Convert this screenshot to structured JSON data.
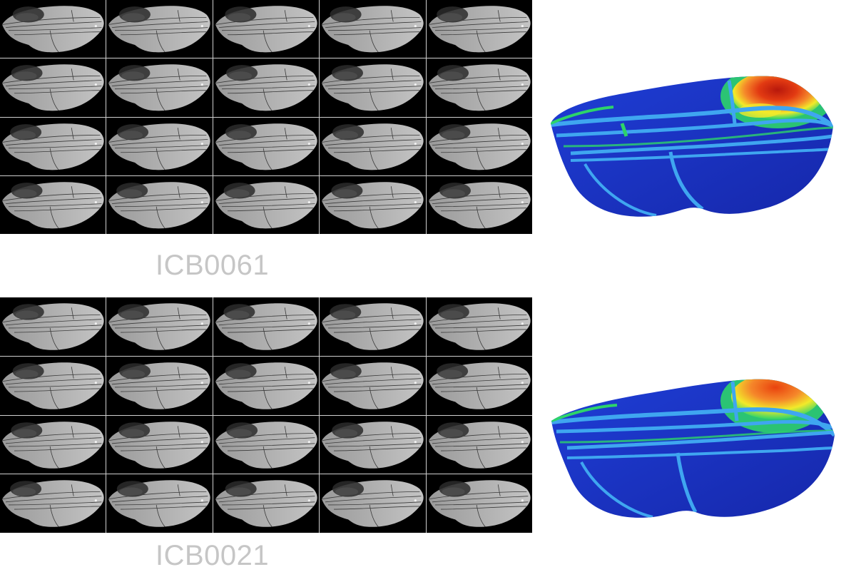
{
  "panels": [
    {
      "label": "ICB0061"
    },
    {
      "label": "ICB0021"
    }
  ],
  "grid": {
    "rows": 4,
    "columns": 5
  },
  "colors": {
    "background": "#ffffff",
    "grid_background": "#000000",
    "label": "#c6c6c6",
    "heat_low": "#1a2fc4",
    "heat_vein": "#3fa6f0",
    "heat_mid": "#2dd46a",
    "heat_high_yellow": "#f2ea2a",
    "heat_high_orange": "#f5872a",
    "heat_max": "#b8180c"
  }
}
